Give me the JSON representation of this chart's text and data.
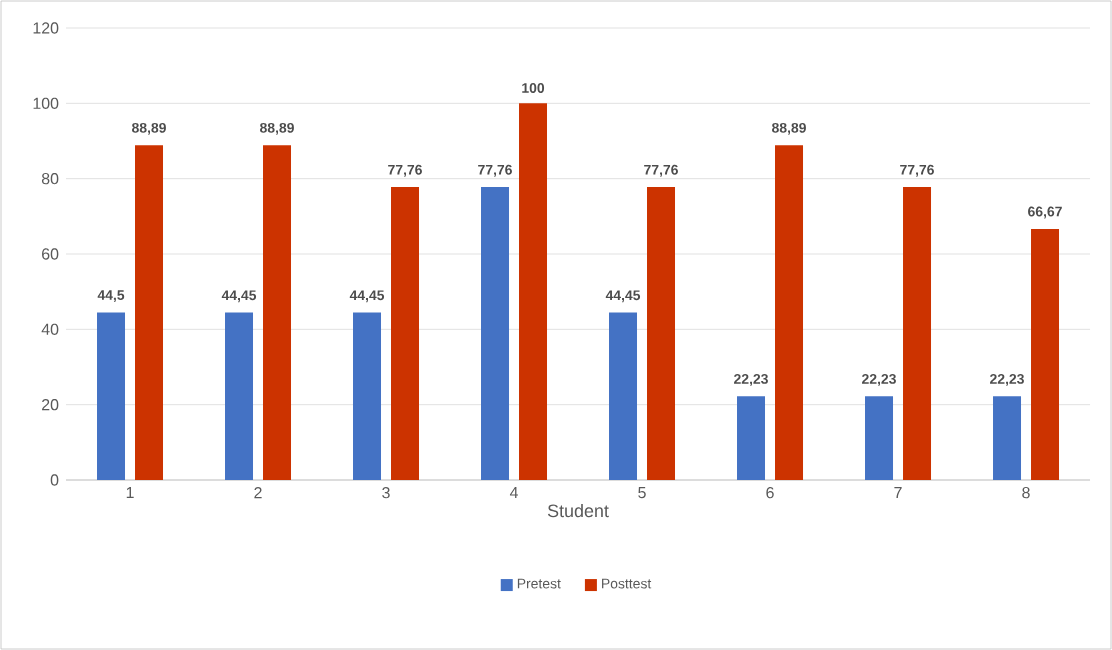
{
  "chart_data": {
    "type": "bar",
    "xlabel": "Student",
    "categories": [
      "1",
      "2",
      "3",
      "4",
      "5",
      "6",
      "7",
      "8"
    ],
    "series": [
      {
        "name": "Pretest",
        "color": "#4472c4",
        "values": [
          44.5,
          44.45,
          44.45,
          77.76,
          44.45,
          22.23,
          22.23,
          22.23
        ],
        "value_labels": [
          "44,5",
          "44,45",
          "44,45",
          "77,76",
          "44,45",
          "22,23",
          "22,23",
          "22,23"
        ]
      },
      {
        "name": "Posttest",
        "color": "#cc3300",
        "values": [
          88.89,
          88.89,
          77.76,
          100,
          77.76,
          88.89,
          77.76,
          66.67
        ],
        "value_labels": [
          "88,89",
          "88,89",
          "77,76",
          "100",
          "77,76",
          "88,89",
          "77,76",
          "66,67"
        ]
      }
    ],
    "ylim": [
      0,
      120
    ],
    "yticks": [
      0,
      20,
      40,
      60,
      80,
      100,
      120
    ],
    "grid": "y",
    "legend": "bottom"
  }
}
